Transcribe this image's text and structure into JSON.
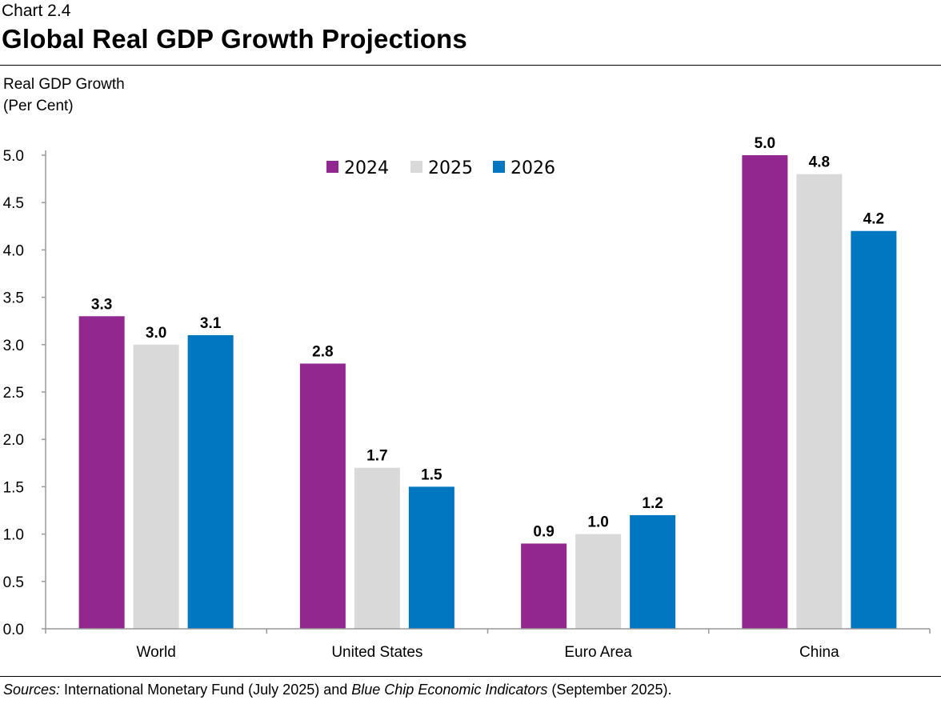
{
  "chart_data": {
    "type": "bar",
    "label": "Chart 2.4",
    "title": "Global Real GDP Growth Projections",
    "ylabel": [
      "Real GDP Growth",
      "(Per Cent)"
    ],
    "ylim": [
      0,
      5.0
    ],
    "yticks": [
      "0.0",
      "0.5",
      "1.0",
      "1.5",
      "2.0",
      "2.5",
      "3.0",
      "3.5",
      "4.0",
      "4.5",
      "5.0"
    ],
    "categories": [
      "World",
      "United States",
      "Euro Area",
      "China"
    ],
    "series": [
      {
        "name": "2024",
        "color": "#92278f",
        "values": [
          3.3,
          2.8,
          0.9,
          5.0
        ]
      },
      {
        "name": "2025",
        "color": "#d9d9d9",
        "values": [
          3.0,
          1.7,
          1.0,
          4.8
        ]
      },
      {
        "name": "2026",
        "color": "#0077c0",
        "values": [
          3.1,
          1.5,
          1.2,
          4.2
        ]
      }
    ],
    "legend": "top-center",
    "grid": false
  },
  "source": {
    "label": "Sources:",
    "text_1": " International Monetary Fund (July 2025) and ",
    "italic": "Blue Chip Economic Indicators",
    "text_2": " (September 2025)."
  }
}
